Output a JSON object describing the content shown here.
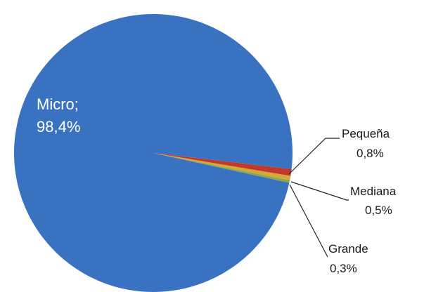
{
  "chart_data": {
    "type": "pie",
    "title": "",
    "slices": [
      {
        "name": "Micro",
        "value": 98.4,
        "label_line1": "Micro;",
        "label_line2": "98,4%",
        "color": "#3a72c2"
      },
      {
        "name": "Pequeña",
        "value": 0.8,
        "label_line1": "Pequeña",
        "label_line2": "0,8%",
        "color": "#c0392b"
      },
      {
        "name": "Mediana",
        "value": 0.5,
        "label_line1": "Mediana",
        "label_line2": "0,5%",
        "color": "#d4a83a"
      },
      {
        "name": "Grande",
        "value": 0.3,
        "label_line1": "Grande",
        "label_line2": "0,3%",
        "color": "#8fa84a"
      }
    ]
  }
}
